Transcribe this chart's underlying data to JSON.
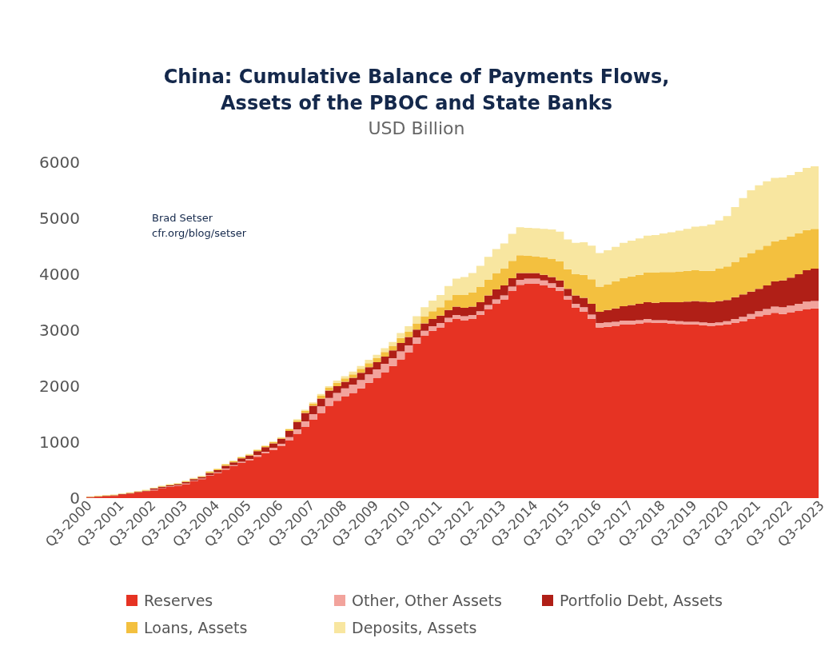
{
  "chart_data": {
    "type": "area",
    "stacked": true,
    "title": "China: Cumulative Balance of Payments Flows, Assets of the PBOC and State Banks",
    "subtitle": "USD Billion",
    "annotations": [
      "Brad Setser",
      "cfr.org/blog/setser"
    ],
    "categories": [
      "Q3-2000",
      null,
      null,
      null,
      "Q3-2001",
      null,
      null,
      null,
      "Q3-2002",
      null,
      null,
      null,
      "Q3-2003",
      null,
      null,
      null,
      "Q3-2004",
      null,
      null,
      null,
      "Q3-2005",
      null,
      null,
      null,
      "Q3-2006",
      null,
      null,
      null,
      "Q3-2007",
      null,
      null,
      null,
      "Q3-2008",
      null,
      null,
      null,
      "Q3-2009",
      null,
      null,
      null,
      "Q3-2010",
      null,
      null,
      null,
      "Q3-2011",
      null,
      null,
      null,
      "Q3-2012",
      null,
      null,
      null,
      "Q3-2013",
      null,
      null,
      null,
      "Q3-2014",
      null,
      null,
      null,
      "Q3-2015",
      null,
      null,
      null,
      "Q3-2016",
      null,
      null,
      null,
      "Q3-2017",
      null,
      null,
      null,
      "Q3-2018",
      null,
      null,
      null,
      "Q3-2019",
      null,
      null,
      null,
      "Q3-2020",
      null,
      null,
      null,
      "Q3-2021",
      null,
      null,
      null,
      "Q3-2022",
      null,
      null,
      null,
      "Q3-2023"
    ],
    "series": [
      {
        "name": "Reserves",
        "color": "#e63323",
        "values": [
          10,
          20,
          30,
          40,
          60,
          80,
          100,
          120,
          140,
          170,
          200,
          220,
          250,
          300,
          340,
          400,
          450,
          510,
          570,
          630,
          680,
          740,
          800,
          860,
          930,
          1030,
          1150,
          1270,
          1400,
          1520,
          1650,
          1740,
          1820,
          1880,
          1960,
          2060,
          2150,
          2250,
          2360,
          2480,
          2600,
          2760,
          2900,
          2990,
          3050,
          3150,
          3200,
          3180,
          3200,
          3270,
          3380,
          3480,
          3550,
          3700,
          3810,
          3830,
          3830,
          3800,
          3760,
          3700,
          3550,
          3400,
          3330,
          3200,
          3050,
          3060,
          3080,
          3100,
          3100,
          3120,
          3140,
          3130,
          3130,
          3120,
          3110,
          3100,
          3100,
          3090,
          3080,
          3090,
          3100,
          3130,
          3160,
          3200,
          3250,
          3280,
          3310,
          3290,
          3320,
          3350,
          3380,
          3390,
          3350
        ]
      },
      {
        "name": "Other, Other Assets",
        "color": "#f2a39c",
        "values": [
          0,
          0,
          0,
          0,
          0,
          0,
          0,
          0,
          10,
          10,
          10,
          10,
          10,
          10,
          10,
          10,
          10,
          20,
          20,
          20,
          20,
          30,
          30,
          40,
          40,
          60,
          80,
          100,
          100,
          120,
          140,
          140,
          140,
          150,
          150,
          150,
          150,
          150,
          140,
          140,
          130,
          110,
          90,
          80,
          80,
          70,
          70,
          70,
          70,
          70,
          70,
          70,
          70,
          80,
          90,
          90,
          90,
          90,
          80,
          70,
          60,
          70,
          80,
          80,
          80,
          80,
          70,
          70,
          70,
          60,
          60,
          50,
          50,
          50,
          50,
          50,
          50,
          50,
          50,
          50,
          60,
          70,
          80,
          90,
          90,
          100,
          110,
          120,
          120,
          120,
          130,
          130,
          100
        ]
      },
      {
        "name": "Portfolio Debt, Assets",
        "color": "#b01f17",
        "values": [
          10,
          10,
          10,
          10,
          10,
          10,
          10,
          10,
          20,
          20,
          20,
          20,
          30,
          30,
          30,
          40,
          40,
          50,
          50,
          60,
          60,
          70,
          80,
          80,
          90,
          110,
          130,
          150,
          150,
          140,
          130,
          120,
          120,
          120,
          130,
          130,
          130,
          130,
          140,
          150,
          150,
          140,
          130,
          130,
          130,
          140,
          150,
          150,
          150,
          160,
          170,
          180,
          180,
          150,
          120,
          100,
          100,
          100,
          110,
          120,
          130,
          150,
          170,
          190,
          200,
          220,
          240,
          260,
          280,
          290,
          300,
          310,
          320,
          330,
          340,
          360,
          370,
          370,
          370,
          380,
          380,
          390,
          400,
          400,
          400,
          420,
          450,
          480,
          500,
          530,
          560,
          580,
          580
        ]
      },
      {
        "name": "Loans, Assets",
        "color": "#f3c03f",
        "values": [
          10,
          10,
          10,
          10,
          10,
          10,
          10,
          10,
          10,
          10,
          10,
          10,
          10,
          10,
          10,
          20,
          20,
          20,
          20,
          20,
          20,
          20,
          20,
          20,
          20,
          30,
          30,
          40,
          40,
          50,
          50,
          60,
          60,
          60,
          70,
          70,
          70,
          80,
          80,
          90,
          90,
          110,
          130,
          140,
          150,
          180,
          210,
          230,
          250,
          270,
          280,
          290,
          300,
          310,
          320,
          310,
          300,
          310,
          330,
          340,
          350,
          380,
          410,
          440,
          450,
          460,
          480,
          500,
          510,
          520,
          530,
          540,
          540,
          540,
          550,
          550,
          550,
          550,
          560,
          580,
          600,
          630,
          660,
          690,
          700,
          710,
          720,
          730,
          730,
          730,
          720,
          710,
          700
        ]
      },
      {
        "name": "Deposits, Assets",
        "color": "#f8e6a0",
        "values": [
          0,
          0,
          0,
          0,
          0,
          0,
          0,
          10,
          10,
          10,
          10,
          10,
          10,
          10,
          10,
          10,
          10,
          10,
          10,
          10,
          10,
          10,
          10,
          10,
          10,
          10,
          20,
          20,
          20,
          30,
          30,
          40,
          40,
          50,
          50,
          60,
          60,
          70,
          70,
          90,
          100,
          130,
          160,
          190,
          220,
          250,
          290,
          320,
          350,
          380,
          410,
          430,
          450,
          480,
          500,
          500,
          500,
          510,
          520,
          530,
          530,
          560,
          580,
          600,
          600,
          610,
          620,
          630,
          640,
          650,
          660,
          670,
          690,
          710,
          730,
          750,
          780,
          800,
          830,
          860,
          900,
          980,
          1060,
          1120,
          1150,
          1150,
          1130,
          1110,
          1100,
          1100,
          1110,
          1120,
          1060
        ]
      }
    ],
    "ylim": [
      0,
      6000
    ],
    "yticks": [
      0,
      1000,
      2000,
      3000,
      4000,
      5000,
      6000
    ],
    "legend": "bottom"
  }
}
